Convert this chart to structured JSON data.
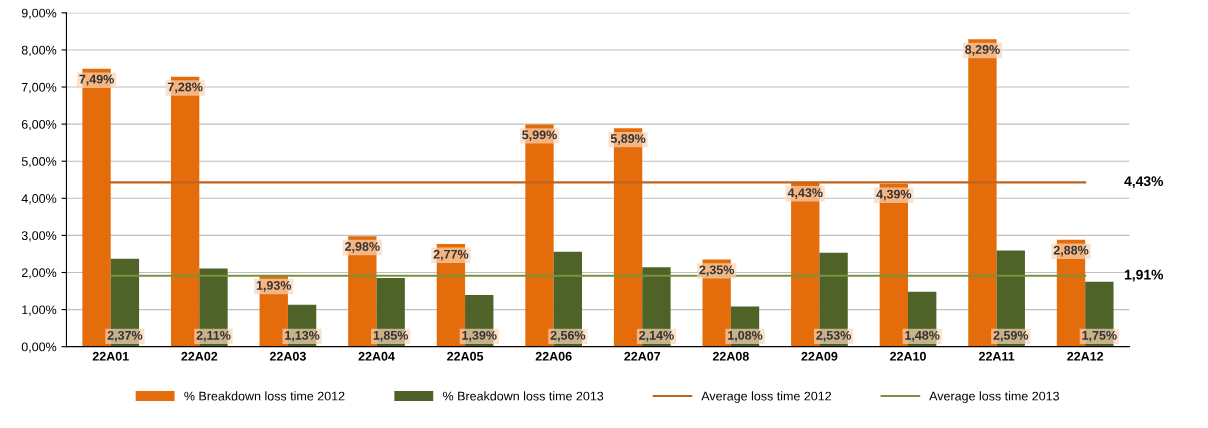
{
  "chart_data": {
    "type": "bar",
    "categories": [
      "22A01",
      "22A02",
      "22A03",
      "22A04",
      "22A05",
      "22A06",
      "22A07",
      "22A08",
      "22A09",
      "22A10",
      "22A11",
      "22A12"
    ],
    "series": [
      {
        "name": "% Breakdown loss time 2012",
        "color": "#e46c0a",
        "values": [
          7.49,
          7.28,
          1.93,
          2.98,
          2.77,
          5.99,
          5.89,
          2.35,
          4.43,
          4.39,
          8.29,
          2.88
        ],
        "value_labels": [
          "7,49%",
          "7,28%",
          "1,93%",
          "2,98%",
          "2,77%",
          "5,99%",
          "5,89%",
          "2,35%",
          "4,43%",
          "4,39%",
          "8,29%",
          "2,88%"
        ]
      },
      {
        "name": "% Breakdown loss time 2013",
        "color": "#4f6228",
        "values": [
          2.37,
          2.11,
          1.13,
          1.85,
          1.39,
          2.56,
          2.14,
          1.08,
          2.53,
          1.48,
          2.59,
          1.75
        ],
        "value_labels": [
          "2,37%",
          "2,11%",
          "1,13%",
          "1,85%",
          "1,39%",
          "2,56%",
          "2,14%",
          "1,08%",
          "2,53%",
          "1,48%",
          "2,59%",
          "1,75%"
        ]
      },
      {
        "name": "Average loss time 2012",
        "type": "line",
        "color": "#c0651e",
        "values": [
          4.43,
          4.43,
          4.43,
          4.43,
          4.43,
          4.43,
          4.43,
          4.43,
          4.43,
          4.43,
          4.43,
          4.43
        ]
      },
      {
        "name": "Average loss time 2013",
        "type": "line",
        "color": "#77933c",
        "values": [
          1.91,
          1.91,
          1.91,
          1.91,
          1.91,
          1.91,
          1.91,
          1.91,
          1.91,
          1.91,
          1.91,
          1.91
        ]
      }
    ],
    "annotations": [
      {
        "text": "4,43%",
        "x": "22A12",
        "y": 4.43
      },
      {
        "text": "1,91%",
        "x": "22A12",
        "y": 1.91
      }
    ],
    "ylim": [
      0,
      9
    ],
    "yticks": [
      {
        "value": 0,
        "label": "0,00%"
      },
      {
        "value": 1,
        "label": "1,00%"
      },
      {
        "value": 2,
        "label": "2,00%"
      },
      {
        "value": 3,
        "label": "3,00%"
      },
      {
        "value": 4,
        "label": "4,00%"
      },
      {
        "value": 5,
        "label": "5,00%"
      },
      {
        "value": 6,
        "label": "6,00%"
      },
      {
        "value": 7,
        "label": "7,00%"
      },
      {
        "value": 8,
        "label": "8,00%"
      },
      {
        "value": 9,
        "label": "9,00%"
      }
    ],
    "grid": "y",
    "legend": "bottom",
    "marker": "none",
    "line_style": "solid"
  }
}
